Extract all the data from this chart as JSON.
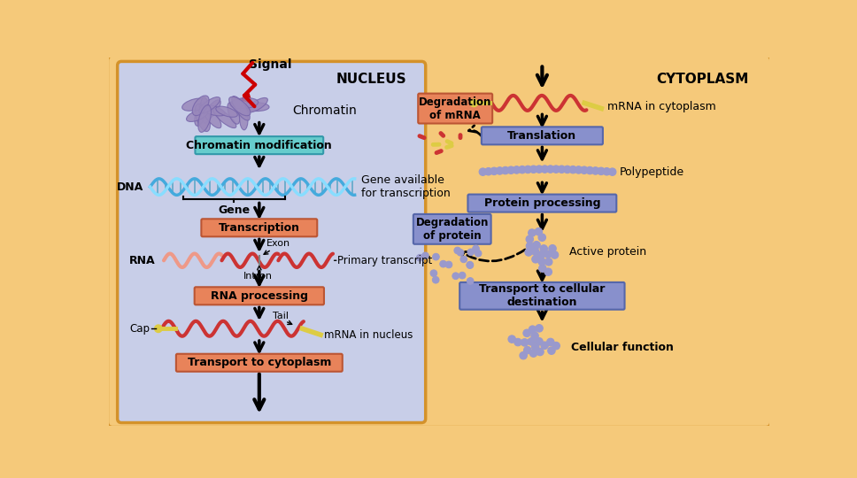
{
  "bg_outer": "#F5C97A",
  "bg_nucleus": "#C8CEE8",
  "nucleus_label": "NUCLEUS",
  "cytoplasm_label": "CYTOPLASM",
  "signal_label": "Signal",
  "chromatin_label": "Chromatin",
  "dna_label": "DNA",
  "gene_label": "Gene",
  "gene_avail_label": "Gene available\nfor transcription",
  "rna_label": "RNA",
  "exon_label": "Exon",
  "intron_label": "Intron",
  "primary_transcript_label": "Primary transcript",
  "cap_label": "Cap",
  "tail_label": "Tail",
  "mrna_nucleus_label": "mRNA in nucleus",
  "mrna_cytoplasm_label": "mRNA in cytoplasm",
  "polypeptide_label": "Polypeptide",
  "active_protein_label": "Active protein",
  "cellular_function_label": "Cellular function",
  "box_chromatin_mod_text": "Chromatin modification",
  "box_chromatin_mod_color": "#66CCCC",
  "box_chromatin_mod_edge": "#3399AA",
  "box_transcription_text": "Transcription",
  "box_transcription_color": "#E8835A",
  "box_transcription_edge": "#BB5533",
  "box_rna_processing_text": "RNA processing",
  "box_rna_processing_color": "#E8835A",
  "box_rna_processing_edge": "#BB5533",
  "box_transport_cyto_text": "Transport to cytoplasm",
  "box_transport_cyto_color": "#E8835A",
  "box_transport_cyto_edge": "#BB5533",
  "box_translation_text": "Translation",
  "box_translation_color": "#8890CC",
  "box_translation_edge": "#5566AA",
  "box_protein_processing_text": "Protein processing",
  "box_protein_processing_color": "#8890CC",
  "box_protein_processing_edge": "#5566AA",
  "box_transport_dest_text": "Transport to cellular\ndestination",
  "box_transport_dest_color": "#8890CC",
  "box_transport_dest_edge": "#5566AA",
  "box_deg_mrna_text": "Degradation\nof mRNA",
  "box_deg_mrna_color": "#E8835A",
  "box_deg_mrna_edge": "#BB5533",
  "box_deg_protein_text": "Degradation\nof protein",
  "box_deg_protein_color": "#8890CC",
  "box_deg_protein_edge": "#5566AA",
  "arrow_color": "#000000",
  "dna_color1": "#44AADD",
  "dna_color2": "#88DDFF",
  "rna_color": "#CC3333",
  "rna_light_color": "#EE9988",
  "yellow_color": "#DDCC44",
  "chromatin_color": "#9988BB",
  "bead_color": "#9999CC",
  "bead_edge": "#7777AA"
}
